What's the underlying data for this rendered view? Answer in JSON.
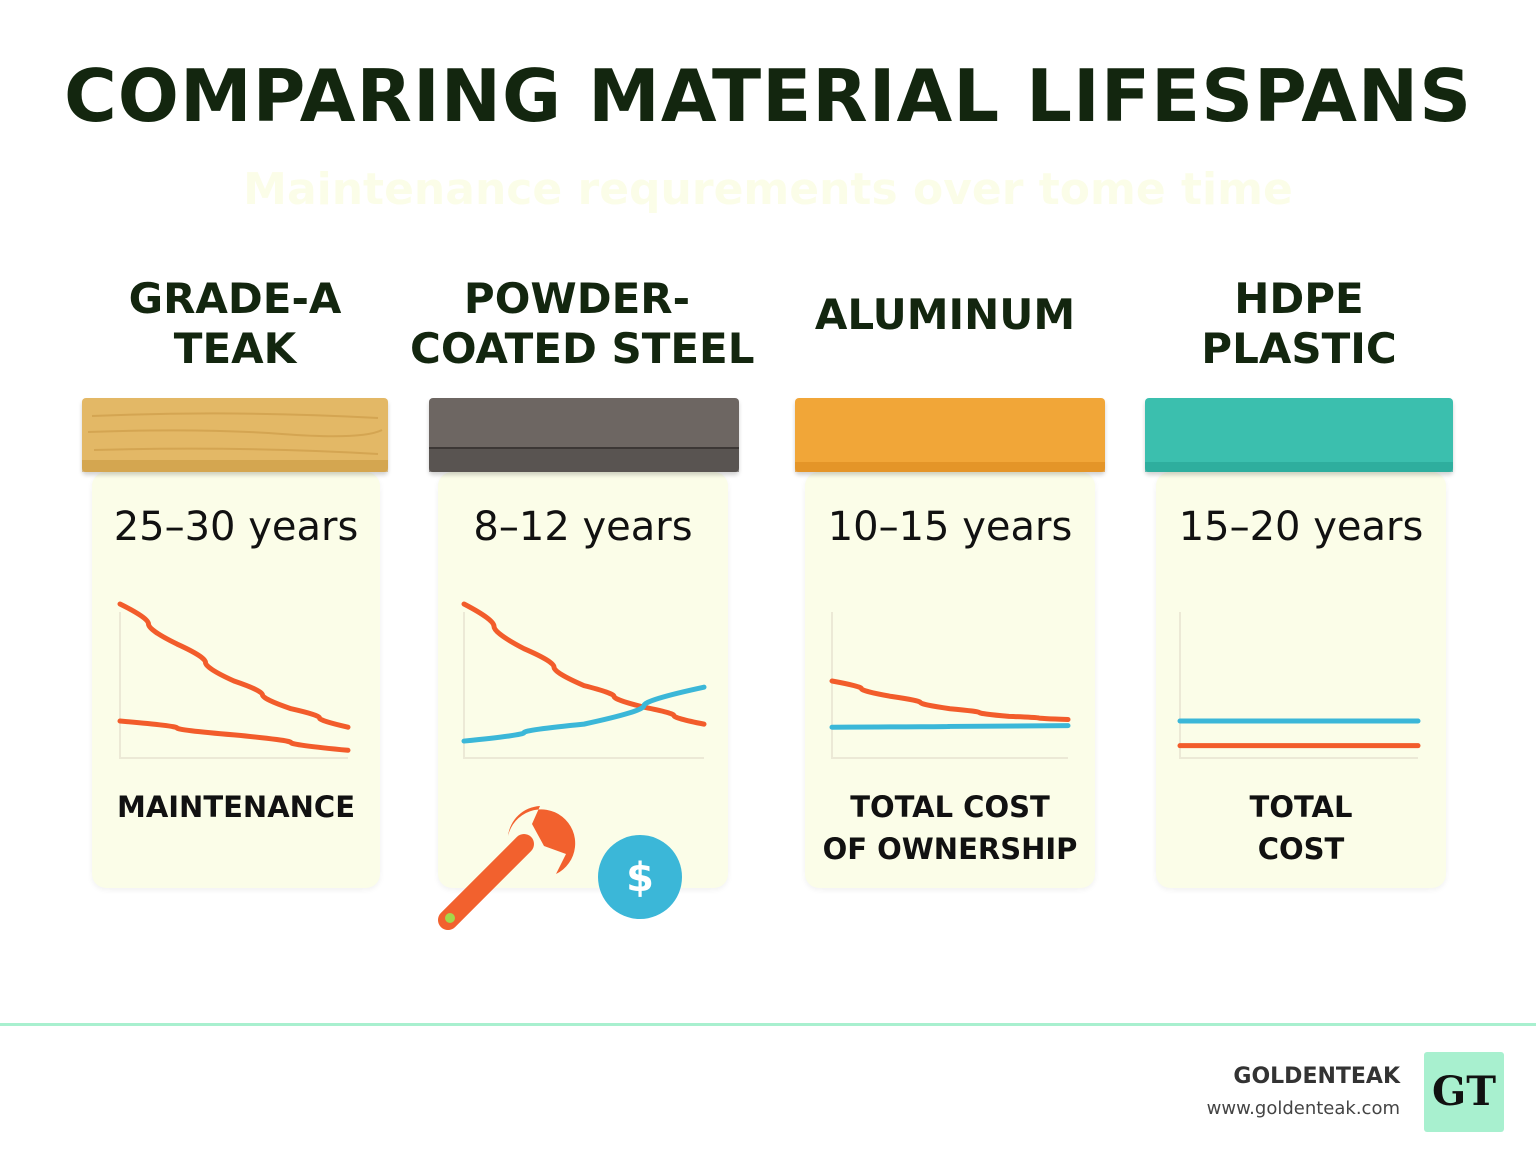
{
  "title": "COMPARING MATERIAL LIFESPANS",
  "subtitle": "Maintenance requrements over tome time",
  "colors": {
    "red_line": "#f25c2b",
    "blue_line": "#3bb7d8",
    "card_bg": "#fbfde8",
    "title": "#13260f",
    "brand_accent": "#a8f0cf"
  },
  "materials": [
    {
      "name_line1": "GRADE-A",
      "name_line2": "TEAK",
      "lifespan": "25–30 years",
      "cap_color": "#e3b866",
      "metric_line1": "MAINTENANCE",
      "metric_line2": ""
    },
    {
      "name_line1": "POWDER-",
      "name_line2": "COATED STEEL",
      "lifespan": "8–12 years",
      "cap_color": "#6d6662",
      "metric_line1": "",
      "metric_line2": ""
    },
    {
      "name_line1": "ALUMINUM",
      "name_line2": "",
      "lifespan": "10–15 years",
      "cap_color": "#f1a638",
      "metric_line1": "TOTAL COST",
      "metric_line2": "OF OWNERSHIP"
    },
    {
      "name_line1": "HDPE",
      "name_line2": "PLASTIC",
      "lifespan": "15–20 years",
      "cap_color": "#3bbfae",
      "metric_line1": "TOTAL",
      "metric_line2": "COST"
    }
  ],
  "icons": {
    "wrench": "wrench-icon",
    "dollar": "dollar-icon",
    "dollar_symbol": "$"
  },
  "chart_data": {
    "type": "line",
    "xlim": [
      0,
      1
    ],
    "ylim": [
      0,
      1
    ],
    "charts": [
      {
        "material": "GRADE-A TEAK",
        "series": [
          {
            "color": "#f25c2b",
            "x": [
              0,
              0.25,
              0.5,
              0.75,
              1
            ],
            "y": [
              1.0,
              0.74,
              0.5,
              0.32,
              0.2
            ]
          },
          {
            "color": "#f25c2b",
            "x": [
              0,
              0.5,
              1
            ],
            "y": [
              0.24,
              0.15,
              0.05
            ]
          }
        ]
      },
      {
        "material": "POWDER-COATED STEEL",
        "series": [
          {
            "color": "#f25c2b",
            "x": [
              0,
              0.25,
              0.5,
              0.75,
              1
            ],
            "y": [
              1.0,
              0.71,
              0.47,
              0.33,
              0.22
            ]
          },
          {
            "color": "#3bb7d8",
            "x": [
              0,
              0.5,
              1
            ],
            "y": [
              0.11,
              0.22,
              0.46
            ]
          }
        ]
      },
      {
        "material": "ALUMINUM",
        "series": [
          {
            "color": "#f25c2b",
            "x": [
              0,
              0.25,
              0.5,
              0.75,
              1
            ],
            "y": [
              0.5,
              0.4,
              0.32,
              0.27,
              0.25
            ]
          },
          {
            "color": "#3bb7d8",
            "x": [
              0,
              1
            ],
            "y": [
              0.2,
              0.21
            ]
          }
        ]
      },
      {
        "material": "HDPE PLASTIC",
        "series": [
          {
            "color": "#3bb7d8",
            "x": [
              0,
              1
            ],
            "y": [
              0.24,
              0.24
            ]
          },
          {
            "color": "#f25c2b",
            "x": [
              0,
              1
            ],
            "y": [
              0.08,
              0.08
            ]
          }
        ]
      }
    ]
  },
  "footer": {
    "brand": "GOLDENTEAK",
    "url": "www.goldenteak.com",
    "logo_text": "GT"
  }
}
